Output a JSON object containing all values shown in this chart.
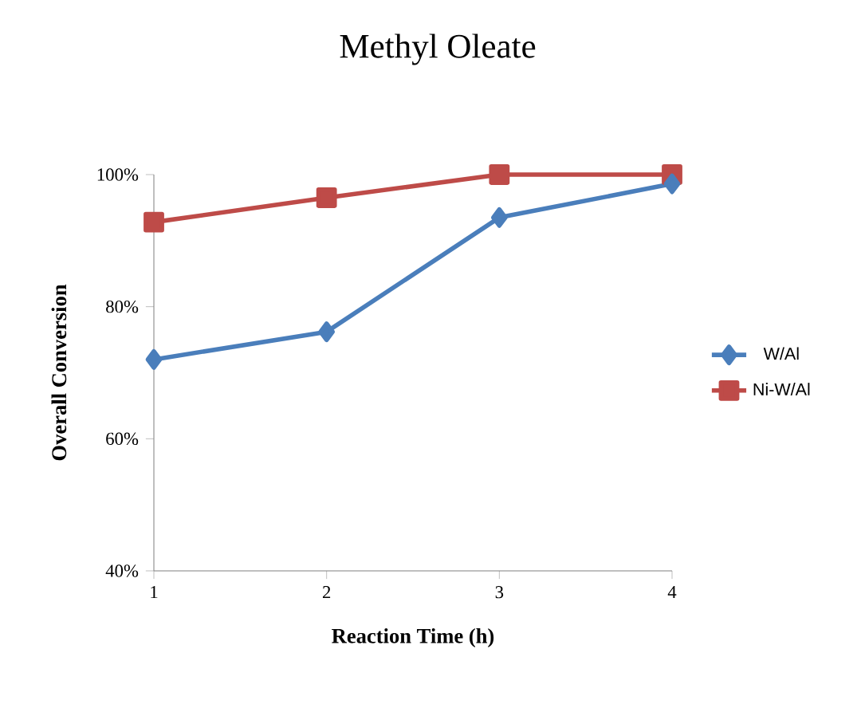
{
  "chart_data": {
    "type": "line",
    "title": "Methyl Oleate",
    "xlabel": "Reaction Time (h)",
    "ylabel": "Overall Conversion",
    "categories": [
      "1",
      "2",
      "3",
      "4"
    ],
    "series": [
      {
        "name": "W/Al",
        "color": "#4a7ebb",
        "marker": "diamond",
        "values": [
          72,
          76.2,
          93.5,
          98.6
        ]
      },
      {
        "name": "Ni-W/Al",
        "color": "#be4b48",
        "marker": "square",
        "values": [
          92.8,
          96.5,
          100,
          100
        ]
      }
    ],
    "ylim": [
      40,
      100
    ],
    "yticks": [
      {
        "value": 40,
        "label": "40%"
      },
      {
        "value": 60,
        "label": "60%"
      },
      {
        "value": 80,
        "label": "80%"
      },
      {
        "value": 100,
        "label": "100%"
      }
    ],
    "grid": false,
    "legend": "right",
    "line_style": "solid"
  }
}
